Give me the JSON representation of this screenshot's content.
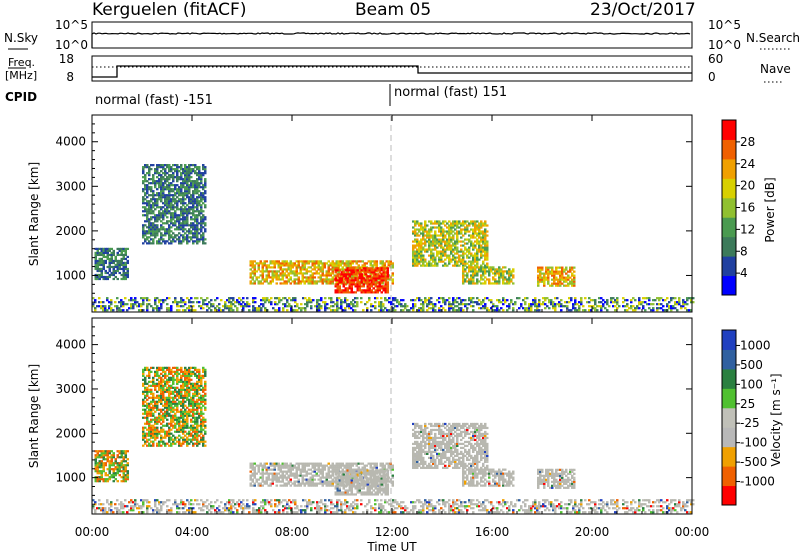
{
  "header": {
    "station": "Kerguelen (fitACF)",
    "beam": "Beam 05",
    "date": "23/Oct/2017"
  },
  "strip_labels": {
    "nsky": "N.Sky",
    "nsearch": "N.Search",
    "freq_line1": "Freq.",
    "freq_line2": "[MHz]",
    "nave": "Nave",
    "cpid": "CPID",
    "nsky_ticks": [
      "10^5",
      "10^0"
    ],
    "nsearch_ticks": [
      "10^5",
      "10^0"
    ],
    "freq_ticks": [
      "18",
      "8"
    ],
    "nave_ticks": [
      "60",
      "0"
    ]
  },
  "cpid_labels": [
    "normal (fast) -151",
    "normal (fast) 151"
  ],
  "colors": {
    "power_scale": [
      "#0000ff",
      "#2040a0",
      "#3c7a5a",
      "#4a9a50",
      "#90c030",
      "#d8d000",
      "#f0a000",
      "#f06000",
      "#ff0000"
    ],
    "velocity_scale": [
      "#2040c0",
      "#3060a0",
      "#2a8040",
      "#50c030",
      "#c0c0b8",
      "#b8b8b8",
      "#f0a000",
      "#f06000",
      "#ff0000"
    ],
    "ground_scatter": "#b8b8b0"
  },
  "chart_data": [
    {
      "type": "heatmap",
      "title": "Power",
      "ylabel": "Slant Range [km]",
      "xlabel": "",
      "x_ticks": [
        "00:00",
        "04:00",
        "08:00",
        "12:00",
        "16:00",
        "20:00",
        "00:00"
      ],
      "y_ticks": [
        "1000",
        "2000",
        "3000",
        "4000"
      ],
      "xlim_hours": [
        0,
        24
      ],
      "ylim_km": [
        180,
        4600
      ],
      "colorbar": {
        "label": "Power [dB]",
        "ticks": [
          "4",
          "8",
          "12",
          "16",
          "20",
          "24",
          "28"
        ],
        "range": [
          0,
          30
        ]
      },
      "echo_regions": [
        {
          "t0": 0.0,
          "t1": 24.0,
          "r0": 200,
          "r1": 500,
          "level": "mixed"
        },
        {
          "t0": 0.1,
          "t1": 1.4,
          "r0": 900,
          "r1": 1600,
          "level": "low"
        },
        {
          "t0": 2.0,
          "t1": 4.5,
          "r0": 1700,
          "r1": 3500,
          "level": "low"
        },
        {
          "t0": 6.3,
          "t1": 12.0,
          "r0": 800,
          "r1": 1300,
          "level": "high"
        },
        {
          "t0": 9.7,
          "t1": 11.8,
          "r0": 600,
          "r1": 1150,
          "level": "max"
        },
        {
          "t0": 12.8,
          "t1": 15.8,
          "r0": 1200,
          "r1": 2200,
          "level": "mid"
        },
        {
          "t0": 14.8,
          "t1": 16.8,
          "r0": 800,
          "r1": 1200,
          "level": "mid"
        },
        {
          "t0": 17.8,
          "t1": 19.3,
          "r0": 750,
          "r1": 1200,
          "level": "high"
        }
      ]
    },
    {
      "type": "heatmap",
      "title": "Velocity",
      "ylabel": "Slant Range [km]",
      "xlabel": "Time UT",
      "x_ticks": [
        "00:00",
        "04:00",
        "08:00",
        "12:00",
        "16:00",
        "20:00",
        "00:00"
      ],
      "y_ticks": [
        "1000",
        "2000",
        "3000",
        "4000"
      ],
      "xlim_hours": [
        0,
        24
      ],
      "ylim_km": [
        180,
        4600
      ],
      "colorbar": {
        "label": "Velocity [m s⁻¹]",
        "ticks": [
          "1000",
          "500",
          "100",
          "25",
          "-25",
          "-100",
          "-500",
          "-1000"
        ],
        "range": [
          -1000,
          1000
        ]
      }
    }
  ]
}
